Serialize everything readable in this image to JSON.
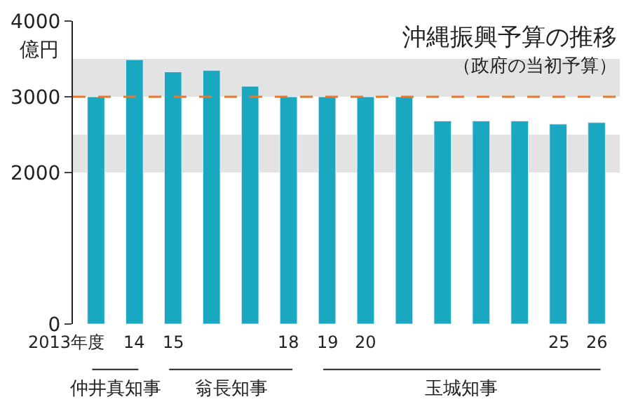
{
  "chart_data": {
    "type": "bar",
    "title": "沖縄振興予算の推移",
    "subtitle": "（政府の当初予算）",
    "ylabel": "億円",
    "categories": [
      "2013年度",
      "14",
      "15",
      null,
      null,
      "18",
      "19",
      "20",
      null,
      null,
      null,
      null,
      "25",
      "26"
    ],
    "values": [
      3000,
      3490,
      3330,
      3350,
      3140,
      3000,
      3000,
      3000,
      3000,
      2680,
      2680,
      2680,
      2640,
      2660
    ],
    "color": "#1aa8c0",
    "ylim": [
      0,
      4000
    ],
    "yticks": [
      0,
      2000,
      3000,
      4000
    ],
    "grid": false,
    "legend": false,
    "ref_lines": [
      {
        "axis": "y",
        "value": 3000,
        "color": "#e8782e",
        "line_style": "dashed"
      }
    ],
    "bands": [
      {
        "axis": "y",
        "from": 2000,
        "to": 2500,
        "color": "#e3e3e3"
      },
      {
        "axis": "y",
        "from": 3000,
        "to": 3500,
        "color": "#e3e3e3"
      }
    ],
    "annotations": [
      "仲井真知事",
      "翁長知事",
      "玉城知事"
    ]
  }
}
